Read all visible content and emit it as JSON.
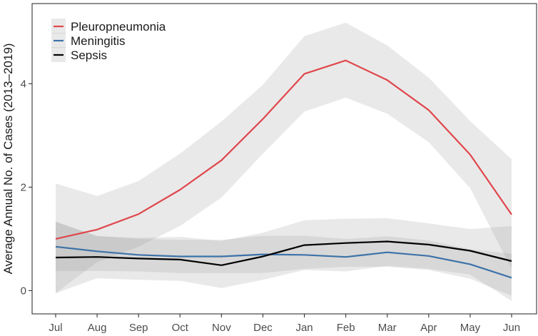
{
  "chart_data": {
    "type": "line",
    "title": "",
    "xlabel": "",
    "ylabel": "Average Annual No. of Cases (2013–2019)",
    "categories": [
      "Jul",
      "Aug",
      "Sep",
      "Oct",
      "Nov",
      "Dec",
      "Jan",
      "Feb",
      "Mar",
      "Apr",
      "May",
      "Jun"
    ],
    "ylim": [
      -0.45,
      5.55
    ],
    "yticks": [
      0,
      2,
      4
    ],
    "grid": false,
    "legend_position": "top-left",
    "series": [
      {
        "name": "Pleuropneumonia",
        "color": "#e0474c",
        "values": [
          1.0,
          1.18,
          1.48,
          1.95,
          2.52,
          3.32,
          4.19,
          4.45,
          4.07,
          3.49,
          2.63,
          1.47
        ],
        "lower": [
          -0.05,
          0.55,
          0.85,
          1.25,
          1.8,
          2.65,
          3.46,
          3.73,
          3.42,
          2.87,
          1.98,
          0.42
        ],
        "upper": [
          2.07,
          1.83,
          2.12,
          2.65,
          3.27,
          3.98,
          4.92,
          5.18,
          4.74,
          4.12,
          3.28,
          2.54
        ]
      },
      {
        "name": "Meningitis",
        "color": "#3d72a8",
        "values": [
          0.85,
          0.76,
          0.69,
          0.66,
          0.66,
          0.7,
          0.69,
          0.65,
          0.74,
          0.67,
          0.51,
          0.25
        ],
        "lower": [
          0.38,
          0.38,
          0.37,
          0.34,
          0.34,
          0.34,
          0.42,
          0.46,
          0.46,
          0.4,
          0.23,
          -0.1
        ],
        "upper": [
          1.33,
          1.06,
          1.0,
          0.98,
          0.98,
          1.06,
          1.06,
          1.0,
          1.05,
          0.97,
          0.8,
          0.71
        ]
      },
      {
        "name": "Sepsis",
        "color": "#000000",
        "values": [
          0.64,
          0.65,
          0.62,
          0.6,
          0.49,
          0.66,
          0.88,
          0.92,
          0.95,
          0.89,
          0.77,
          0.57
        ],
        "lower": [
          -0.05,
          0.24,
          0.21,
          0.19,
          0.05,
          0.21,
          0.4,
          0.37,
          0.48,
          0.42,
          0.31,
          -0.2
        ],
        "upper": [
          1.33,
          1.05,
          1.02,
          1.04,
          0.96,
          1.12,
          1.36,
          1.39,
          1.4,
          1.3,
          1.19,
          1.25
        ]
      }
    ]
  }
}
